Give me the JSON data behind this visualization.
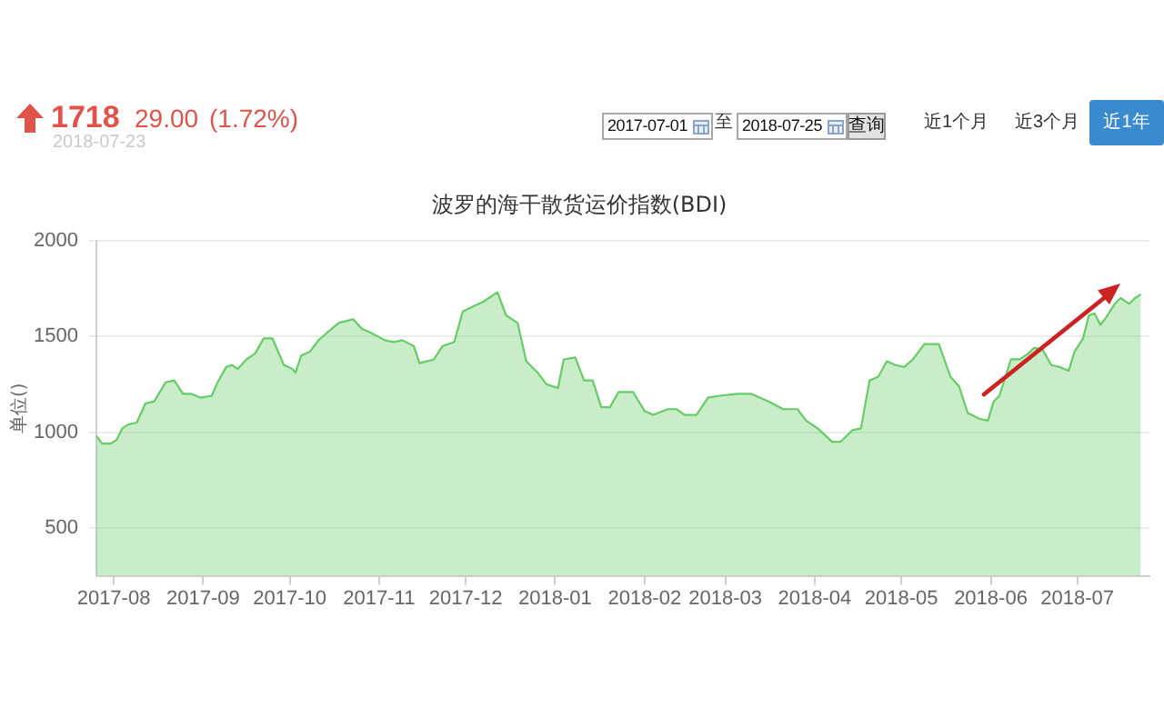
{
  "chart_data": {
    "type": "area",
    "title": "波罗的海干散货运价指数(BDI)",
    "ylabel": "单位()",
    "annotations": [
      "1718",
      "29.00",
      "(1.72%)",
      "2018-07-23",
      "2017-07-01",
      "至",
      "2018-07-25",
      "查询",
      "近1个月",
      "近3个月",
      "近1年"
    ],
    "x": [
      "2017-07-26",
      "2017-07-28",
      "2017-07-31",
      "2017-08-02",
      "2017-08-04",
      "2017-08-06",
      "2017-08-09",
      "2017-08-12",
      "2017-08-15",
      "2017-08-19",
      "2017-08-22",
      "2017-08-25",
      "2017-08-28",
      "2017-08-31",
      "2017-09-04",
      "2017-09-06",
      "2017-09-09",
      "2017-09-11",
      "2017-09-13",
      "2017-09-16",
      "2017-09-19",
      "2017-09-22",
      "2017-09-25",
      "2017-09-27",
      "2017-09-29",
      "2017-10-02",
      "2017-10-03",
      "2017-10-05",
      "2017-10-08",
      "2017-10-11",
      "2017-10-14",
      "2017-10-18",
      "2017-10-23",
      "2017-10-26",
      "2017-10-29",
      "2017-11-03",
      "2017-11-06",
      "2017-11-09",
      "2017-11-13",
      "2017-11-15",
      "2017-11-20",
      "2017-11-23",
      "2017-11-27",
      "2017-11-30",
      "2017-12-04",
      "2017-12-07",
      "2017-12-12",
      "2017-12-15",
      "2017-12-19",
      "2017-12-22",
      "2017-12-26",
      "2017-12-29",
      "2018-01-02",
      "2018-01-04",
      "2018-01-08",
      "2018-01-11",
      "2018-01-14",
      "2018-01-17",
      "2018-01-20",
      "2018-01-23",
      "2018-01-28",
      "2018-02-01",
      "2018-02-04",
      "2018-02-09",
      "2018-02-12",
      "2018-02-15",
      "2018-02-19",
      "2018-02-23",
      "2018-02-27",
      "2018-03-05",
      "2018-03-10",
      "2018-03-16",
      "2018-03-21",
      "2018-03-26",
      "2018-03-29",
      "2018-04-02",
      "2018-04-07",
      "2018-04-10",
      "2018-04-14",
      "2018-04-17",
      "2018-04-20",
      "2018-04-23",
      "2018-04-26",
      "2018-04-29",
      "2018-05-02",
      "2018-05-05",
      "2018-05-09",
      "2018-05-14",
      "2018-05-18",
      "2018-05-21",
      "2018-05-24",
      "2018-05-28",
      "2018-05-31",
      "2018-06-02",
      "2018-06-04",
      "2018-06-08",
      "2018-06-11",
      "2018-06-14",
      "2018-06-16",
      "2018-06-19",
      "2018-06-22",
      "2018-06-25",
      "2018-06-28",
      "2018-06-30",
      "2018-07-03",
      "2018-07-05",
      "2018-07-07",
      "2018-07-09",
      "2018-07-11",
      "2018-07-14",
      "2018-07-16",
      "2018-07-19",
      "2018-07-21",
      "2018-07-23"
    ],
    "values": [
      980,
      940,
      940,
      960,
      1020,
      1040,
      1050,
      1150,
      1160,
      1260,
      1270,
      1200,
      1200,
      1180,
      1190,
      1260,
      1340,
      1350,
      1330,
      1380,
      1410,
      1490,
      1490,
      1420,
      1350,
      1330,
      1310,
      1400,
      1420,
      1480,
      1520,
      1570,
      1590,
      1540,
      1520,
      1480,
      1470,
      1480,
      1450,
      1360,
      1380,
      1450,
      1470,
      1630,
      1660,
      1680,
      1730,
      1610,
      1570,
      1370,
      1310,
      1250,
      1230,
      1380,
      1390,
      1270,
      1270,
      1130,
      1130,
      1210,
      1210,
      1110,
      1090,
      1120,
      1120,
      1090,
      1090,
      1180,
      1190,
      1200,
      1200,
      1160,
      1120,
      1120,
      1060,
      1020,
      950,
      950,
      1010,
      1020,
      1270,
      1290,
      1370,
      1350,
      1340,
      1380,
      1460,
      1460,
      1290,
      1240,
      1100,
      1070,
      1060,
      1160,
      1190,
      1380,
      1380,
      1410,
      1440,
      1430,
      1350,
      1340,
      1320,
      1420,
      1490,
      1610,
      1620,
      1560,
      1600,
      1670,
      1700,
      1670,
      1700,
      1720
    ],
    "color": "#66cc66",
    "xlim": [
      "2017-07-26",
      "2018-07-26"
    ],
    "ylim": [
      250,
      2000
    ],
    "xticks": [
      "2017-08",
      "2017-09",
      "2017-10",
      "2017-11",
      "2017-12",
      "2018-01",
      "2018-02",
      "2018-03",
      "2018-04",
      "2018-05",
      "2018-06",
      "2018-07"
    ],
    "yticks": [
      500,
      1000,
      1500,
      2000
    ],
    "grid": "y"
  }
}
